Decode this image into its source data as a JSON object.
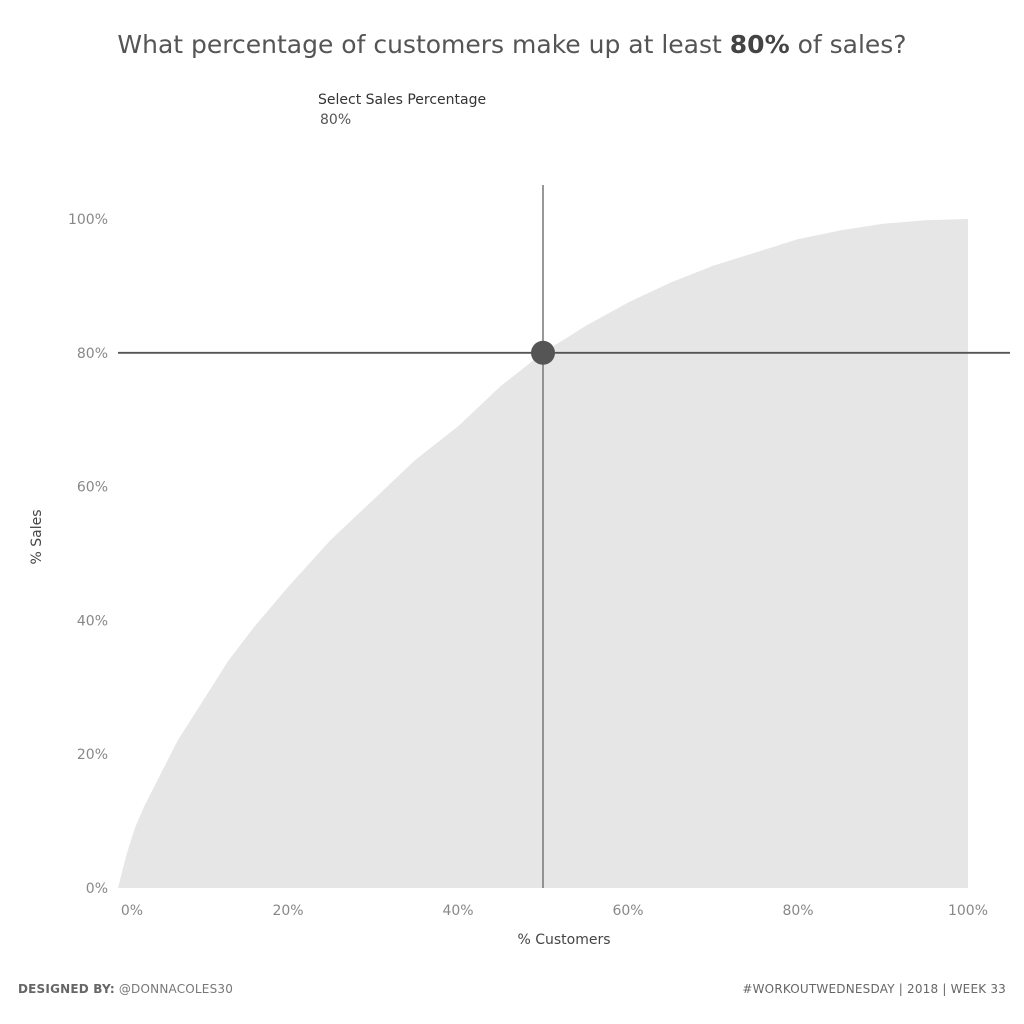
{
  "title": {
    "before": "What percentage of customers make up at least ",
    "highlight": "80%",
    "after": " of sales?"
  },
  "parameter": {
    "label": "Select Sales Percentage",
    "value": "80%"
  },
  "footer": {
    "designed_by_label": "DESIGNED BY:",
    "designed_by_handle": "@DONNACOLES30",
    "right_text": "#WORKOUTWEDNESDAY  |  2018  |  WEEK 33"
  },
  "colors": {
    "area_fill": "#e6e6e6",
    "reference_line": "#555555",
    "marker": "#555555",
    "tick_text": "#888888",
    "axis_title": "#444444"
  },
  "chart_data": {
    "type": "area",
    "xlabel": "% Customers",
    "ylabel": "% Sales",
    "xlim": [
      0,
      100
    ],
    "ylim": [
      0,
      100
    ],
    "x_ticks": [
      "0%",
      "20%",
      "40%",
      "60%",
      "80%",
      "100%"
    ],
    "y_ticks": [
      "0%",
      "20%",
      "40%",
      "60%",
      "80%",
      "100%"
    ],
    "grid": false,
    "x": [
      0,
      1,
      2,
      3,
      5,
      7,
      10,
      13,
      16,
      20,
      25,
      30,
      35,
      40,
      45,
      50,
      55,
      60,
      65,
      70,
      75,
      80,
      85,
      90,
      95,
      100
    ],
    "y": [
      0,
      5,
      9,
      12,
      17,
      22,
      28,
      34,
      39,
      45,
      52,
      58,
      64,
      69,
      75,
      80,
      84,
      87.5,
      90.5,
      93,
      95,
      97,
      98.3,
      99.3,
      99.8,
      100
    ],
    "selected_point": {
      "x": 50,
      "y": 80
    }
  }
}
